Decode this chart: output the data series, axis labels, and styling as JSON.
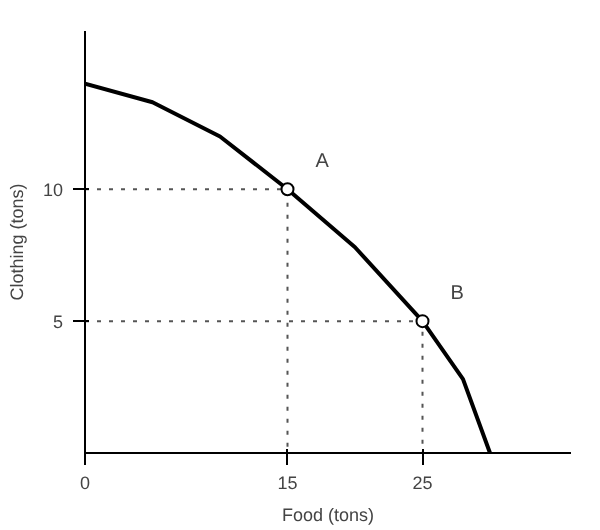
{
  "chart_data": {
    "type": "line",
    "xlabel": "Food (tons)",
    "ylabel": "Clothing (tons)",
    "xlim": [
      0,
      36
    ],
    "ylim": [
      0,
      16
    ],
    "xticks": [
      0,
      15,
      25
    ],
    "yticks": [
      5,
      10
    ],
    "series": [
      {
        "color": "#000000",
        "line_style": "solid",
        "x": [
          0,
          5,
          10,
          15,
          20,
          25,
          28,
          30
        ],
        "values": [
          14,
          13.3,
          12,
          10,
          7.8,
          5,
          2.8,
          0
        ]
      },
      {
        "type": "line",
        "color": "#555555",
        "line_style": "dotted",
        "x": [
          0,
          15,
          15
        ],
        "values": [
          10,
          10,
          0
        ]
      },
      {
        "type": "line",
        "color": "#555555",
        "line_style": "dotted",
        "x": [
          0,
          25,
          25
        ],
        "values": [
          5,
          5,
          0
        ]
      },
      {
        "type": "scatter",
        "color": "#000000",
        "marker": "circle",
        "x": [
          15,
          25
        ],
        "values": [
          10,
          5
        ]
      }
    ],
    "annotations": [
      {
        "text": "A",
        "x": 15,
        "y": 10
      },
      {
        "text": "B",
        "x": 25,
        "y": 5
      }
    ]
  }
}
